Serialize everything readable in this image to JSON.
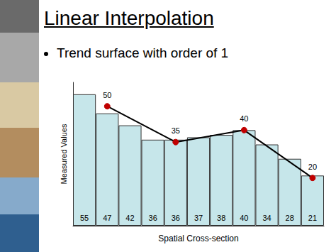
{
  "chart_data": {
    "type": "bar",
    "title": "Linear Interpolation",
    "subtitle": "Trend surface with order of 1",
    "xlabel": "Spatial Cross-section",
    "ylabel": "Measured Values",
    "categories": [
      null,
      null,
      null,
      null,
      null,
      null,
      null,
      null,
      null,
      null,
      null
    ],
    "ylim": [
      0,
      60
    ],
    "tick_labels": false,
    "grid": false,
    "series": [
      {
        "type": "bar",
        "color": "#c6e6ea",
        "data_labels": true,
        "values": [
          55,
          47,
          42,
          36,
          36,
          37,
          38,
          40,
          34,
          28,
          21
        ]
      },
      {
        "type": "line",
        "color": "#000000",
        "marker": "circle",
        "data_labels": true,
        "values": [
          null,
          50,
          null,
          null,
          35,
          null,
          null,
          40,
          null,
          null,
          20
        ]
      }
    ]
  }
}
